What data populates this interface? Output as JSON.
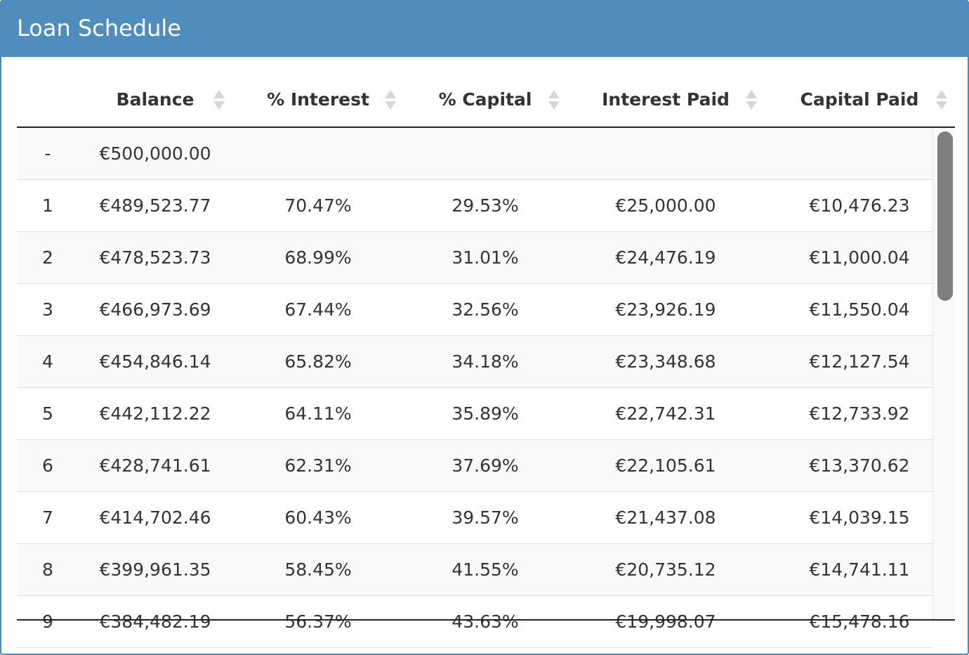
{
  "panel": {
    "title": "Loan Schedule"
  },
  "table": {
    "columns": [
      {
        "label": "",
        "sortable": false
      },
      {
        "label": "Balance",
        "sortable": true
      },
      {
        "label": "% Interest",
        "sortable": true
      },
      {
        "label": "% Capital",
        "sortable": true
      },
      {
        "label": "Interest Paid",
        "sortable": true
      },
      {
        "label": "Capital Paid",
        "sortable": true
      }
    ],
    "rows": [
      [
        "-",
        "€500,000.00",
        "",
        "",
        "",
        ""
      ],
      [
        "1",
        "€489,523.77",
        "70.47%",
        "29.53%",
        "€25,000.00",
        "€10,476.23"
      ],
      [
        "2",
        "€478,523.73",
        "68.99%",
        "31.01%",
        "€24,476.19",
        "€11,000.04"
      ],
      [
        "3",
        "€466,973.69",
        "67.44%",
        "32.56%",
        "€23,926.19",
        "€11,550.04"
      ],
      [
        "4",
        "€454,846.14",
        "65.82%",
        "34.18%",
        "€23,348.68",
        "€12,127.54"
      ],
      [
        "5",
        "€442,112.22",
        "64.11%",
        "35.89%",
        "€22,742.31",
        "€12,733.92"
      ],
      [
        "6",
        "€428,741.61",
        "62.31%",
        "37.69%",
        "€22,105.61",
        "€13,370.62"
      ],
      [
        "7",
        "€414,702.46",
        "60.43%",
        "39.57%",
        "€21,437.08",
        "€14,039.15"
      ],
      [
        "8",
        "€399,961.35",
        "58.45%",
        "41.55%",
        "€20,735.12",
        "€14,741.11"
      ],
      [
        "9",
        "€384,482.19",
        "56.37%",
        "43.63%",
        "€19,998.07",
        "€15,478.16"
      ]
    ]
  },
  "colors": {
    "header_bg": "#4f8dbf",
    "row_striped": "#f9f9f9",
    "scroll_thumb": "#7f7f7f"
  },
  "icons": {
    "sort": "sort-icon"
  },
  "scroll": {
    "thumb_fraction": 0.35
  }
}
